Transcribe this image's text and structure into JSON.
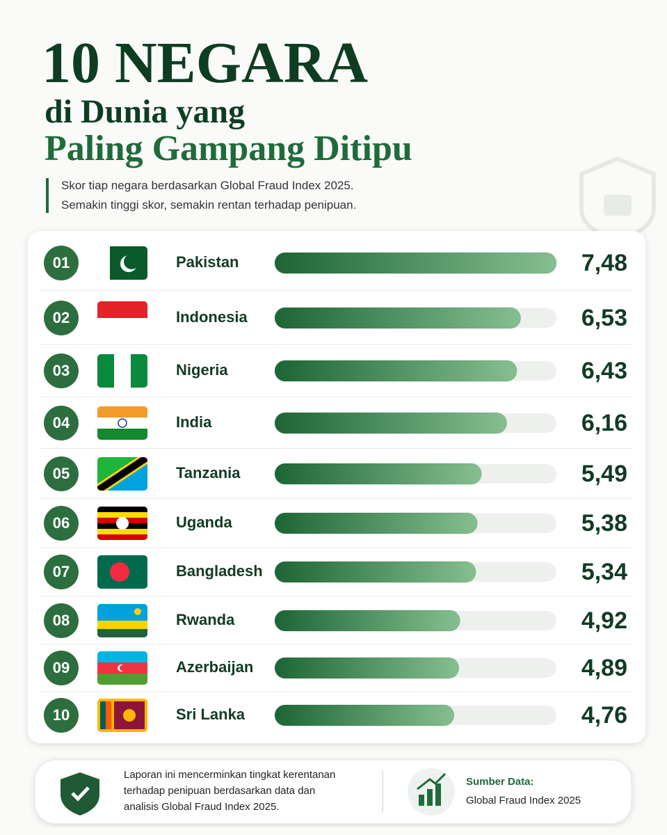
{
  "chart_data": {
    "type": "bar",
    "title_lines": [
      "10 NEGARA",
      "di Dunia yang",
      "Paling Gampang Ditipu"
    ],
    "description_lines": [
      "Skor tiap negara berdasarkan Global Fraud Index 2025.",
      "Semakin tinggi skor, semakin rentan terhadap penipuan."
    ],
    "ranks": [
      "01",
      "02",
      "03",
      "04",
      "05",
      "06",
      "07",
      "08",
      "09",
      "10"
    ],
    "categories": [
      "Pakistan",
      "Indonesia",
      "Nigeria",
      "India",
      "Tanzania",
      "Uganda",
      "Bangladesh",
      "Rwanda",
      "Azerbaijan",
      "Sri Lanka"
    ],
    "values": [
      7.48,
      6.53,
      6.43,
      6.16,
      5.49,
      5.38,
      5.34,
      4.92,
      4.89,
      4.76
    ],
    "value_labels": [
      "7,48",
      "6,53",
      "6,43",
      "6,16",
      "5,49",
      "5,38",
      "5,34",
      "4,92",
      "4,89",
      "4,76"
    ],
    "xlim": [
      0,
      7.48
    ],
    "color": "#1f6b3a",
    "footer": {
      "note_lines": [
        "Laporan ini mencerminkan tingkat kerentanan",
        "terhadap penipuan berdasarkan data dan",
        "analisis Global Fraud Index 2025."
      ],
      "source_label": "Sumber Data:",
      "source": "Global Fraud Index 2025"
    }
  }
}
